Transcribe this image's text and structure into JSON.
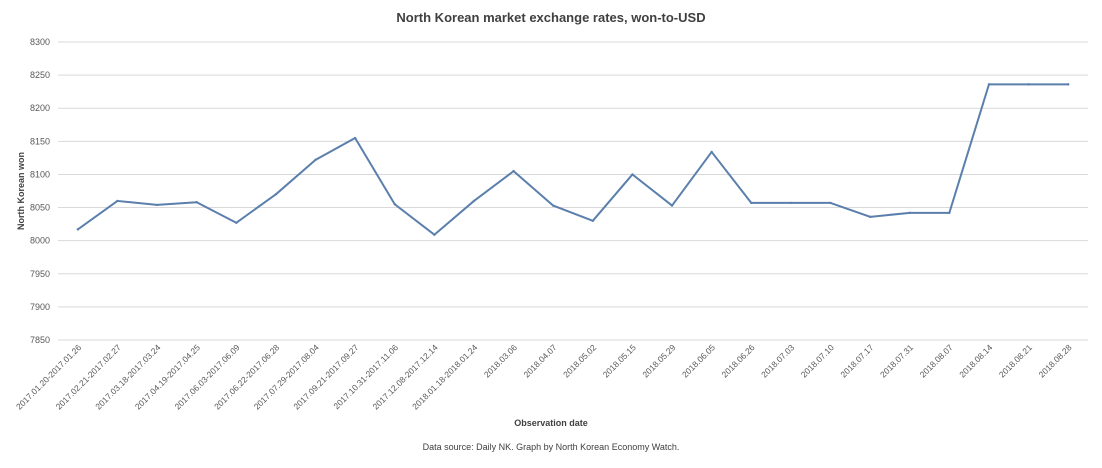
{
  "chart_data": {
    "type": "line",
    "title": "North Korean market exchange rates, won-to-USD",
    "xlabel": "Observation date",
    "ylabel": "North Korean won",
    "source_note": "Data source: Daily NK. Graph by North Korean Economy Watch.",
    "ylim": [
      7850,
      8300
    ],
    "yticks": [
      7850,
      7900,
      7950,
      8000,
      8050,
      8100,
      8150,
      8200,
      8250,
      8300
    ],
    "grid": "horizontal",
    "line_color": "#5b7fac",
    "categories": [
      "2017.01.20-2017.01.26",
      "2017.02.21-2017.02.27",
      "2017.03.18-2017.03.24",
      "2017.04.19-2017.04.25",
      "2017.06.03-2017.06.09",
      "2017.06.22-2017.06.28",
      "2017.07.29-2017.08.04",
      "2017.09.21-2017.09.27",
      "2017.10.31-2017.11.06",
      "2017.12.08-2017.12.14",
      "2018.01.18-2018.01.24",
      "2018.03.06",
      "2018.04.07",
      "2018.05.02",
      "2018.05.15",
      "2018.05.29",
      "2018.06.05",
      "2018.06.26",
      "2018.07.03",
      "2018.07.10",
      "2018.07.17",
      "2018.07.31",
      "2018.08.07",
      "2018.08.14",
      "2018.08.21",
      "2018.08.28"
    ],
    "series": [
      {
        "values": [
          8017,
          8060,
          8054,
          8058,
          8027,
          8070,
          8122,
          8155,
          8055,
          8009,
          8060,
          8105,
          8053,
          8030,
          8100,
          8053,
          8134,
          8057,
          8057,
          8057,
          8036,
          8042,
          8042,
          8236,
          8236,
          8236
        ]
      }
    ]
  }
}
